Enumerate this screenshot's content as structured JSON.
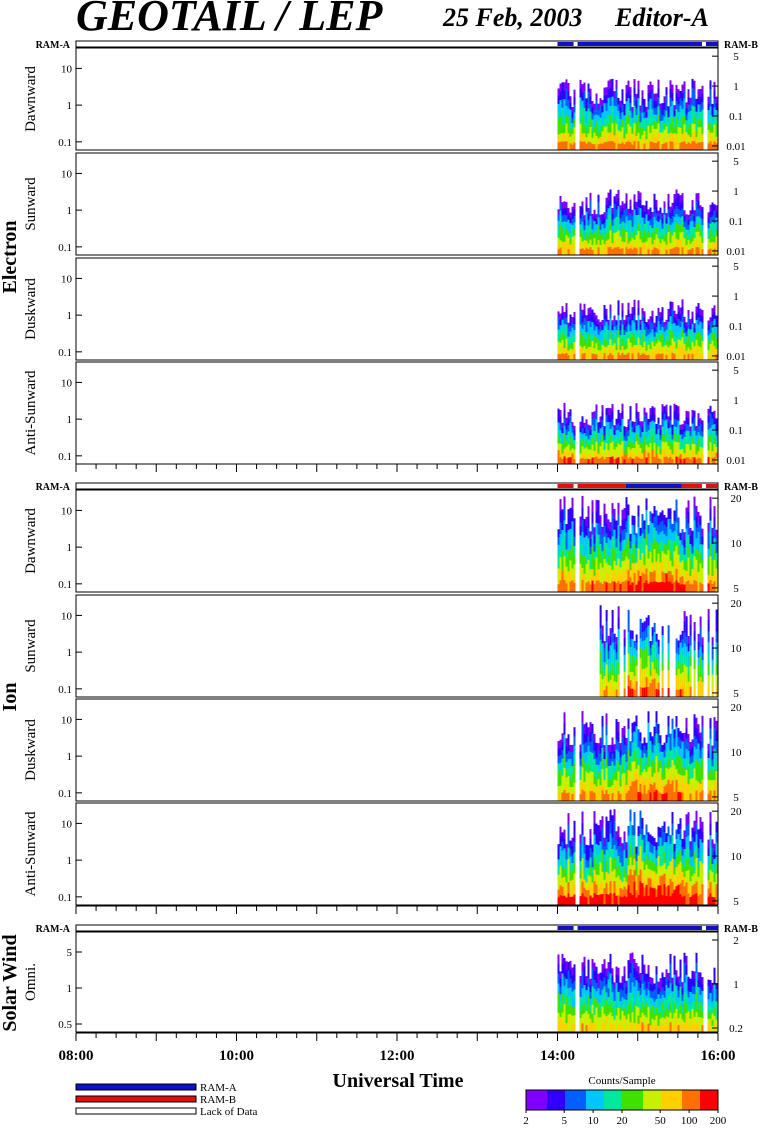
{
  "header": {
    "title": "GEOTAIL / LEP",
    "date": "25 Feb, 2003",
    "editor": "Editor-A"
  },
  "colors": {
    "ram_a": "#1010c8",
    "ram_b": "#e01010",
    "lack_of_data": "#ffffff",
    "colormap": [
      "#8000ff",
      "#3000ff",
      "#0060ff",
      "#00c8ff",
      "#00e8a0",
      "#40e000",
      "#c8f000",
      "#ffd000",
      "#ff7000",
      "#ff0000"
    ]
  },
  "chart_data": {
    "type": "heatmap",
    "description_axis": "Universal Time",
    "x_ticks": [
      "08:00",
      "10:00",
      "12:00",
      "14:00",
      "16:00"
    ],
    "x_range_hours": [
      8,
      16
    ],
    "ram_label_left": "RAM-A",
    "ram_label_right": "RAM-B",
    "groups": [
      {
        "species": "Electron",
        "mode_bar": [
          {
            "start": 14.0,
            "end": 14.2,
            "mode": "ram_a"
          },
          {
            "start": 14.2,
            "end": 14.25,
            "mode": "gap"
          },
          {
            "start": 14.25,
            "end": 15.8,
            "mode": "ram_a"
          },
          {
            "start": 15.8,
            "end": 15.85,
            "mode": "gap"
          },
          {
            "start": 15.85,
            "end": 16.0,
            "mode": "ram_a"
          }
        ],
        "panels": [
          {
            "label": "Dawnward",
            "left_ticks": [
              "10",
              "1",
              "0.1"
            ],
            "right_ticks": [
              "5",
              "1",
              "0.1",
              "0.01"
            ],
            "data_start": 14.0,
            "intensity": 0.55,
            "top_frac": 0.7
          },
          {
            "label": "Sunward",
            "left_ticks": [
              "10",
              "1",
              "0.1"
            ],
            "right_ticks": [
              "5",
              "1",
              "0.1",
              "0.01"
            ],
            "data_start": 14.0,
            "intensity": 0.5,
            "top_frac": 0.65
          },
          {
            "label": "Duskward",
            "left_ticks": [
              "10",
              "1",
              "0.1"
            ],
            "right_ticks": [
              "5",
              "1",
              "0.1",
              "0.01"
            ],
            "data_start": 14.0,
            "intensity": 0.5,
            "top_frac": 0.6
          },
          {
            "label": "Anti-Sunward",
            "left_ticks": [
              "10",
              "1",
              "0.1"
            ],
            "right_ticks": [
              "5",
              "1",
              "0.1",
              "0.01"
            ],
            "data_start": 14.0,
            "intensity": 0.6,
            "top_frac": 0.6
          }
        ]
      },
      {
        "species": "Ion",
        "mode_bar": [
          {
            "start": 14.0,
            "end": 14.2,
            "mode": "ram_b"
          },
          {
            "start": 14.2,
            "end": 14.25,
            "mode": "gap"
          },
          {
            "start": 14.25,
            "end": 14.85,
            "mode": "ram_b"
          },
          {
            "start": 14.85,
            "end": 15.55,
            "mode": "ram_a"
          },
          {
            "start": 15.55,
            "end": 15.8,
            "mode": "ram_b"
          },
          {
            "start": 15.8,
            "end": 15.85,
            "mode": "gap"
          },
          {
            "start": 15.85,
            "end": 16.0,
            "mode": "ram_b"
          }
        ],
        "panels": [
          {
            "label": "Dawnward",
            "left_ticks": [
              "10",
              "1",
              "0.1"
            ],
            "right_ticks": [
              "20",
              "10",
              "5"
            ],
            "data_start": 14.0,
            "intensity": 0.6,
            "top_frac": 0.95
          },
          {
            "label": "Sunward",
            "left_ticks": [
              "10",
              "1",
              "0.1"
            ],
            "right_ticks": [
              "20",
              "10",
              "5"
            ],
            "data_start": 14.5,
            "intensity": 0.45,
            "top_frac": 0.9
          },
          {
            "label": "Duskward",
            "left_ticks": [
              "10",
              "1",
              "0.1"
            ],
            "right_ticks": [
              "20",
              "10",
              "5"
            ],
            "data_start": 14.0,
            "intensity": 0.5,
            "top_frac": 0.9
          },
          {
            "label": "Anti-Sunward",
            "left_ticks": [
              "10",
              "1",
              "0.1"
            ],
            "right_ticks": [
              "20",
              "10",
              "5"
            ],
            "data_start": 14.0,
            "intensity": 0.8,
            "top_frac": 0.95
          }
        ]
      },
      {
        "species": "Solar Wind",
        "mode_bar": [
          {
            "start": 14.0,
            "end": 14.2,
            "mode": "ram_a"
          },
          {
            "start": 14.2,
            "end": 14.25,
            "mode": "gap"
          },
          {
            "start": 14.25,
            "end": 15.8,
            "mode": "ram_a"
          },
          {
            "start": 15.8,
            "end": 15.85,
            "mode": "gap"
          },
          {
            "start": 15.85,
            "end": 16.0,
            "mode": "ram_a"
          }
        ],
        "panels": [
          {
            "label": "Omni.",
            "left_ticks": [
              "5",
              "1",
              "0.5"
            ],
            "right_ticks": [
              "2",
              "1",
              "0.2"
            ],
            "data_start": 14.0,
            "intensity": 0.35,
            "top_frac": 0.8
          }
        ]
      }
    ],
    "colorbar": {
      "title": "Counts/Sample",
      "ticks": [
        "2",
        "5",
        "10",
        "20",
        "50",
        "100",
        "200"
      ]
    },
    "legend": [
      {
        "label": "RAM-A",
        "mode": "ram_a"
      },
      {
        "label": "RAM-B",
        "mode": "ram_b"
      },
      {
        "label": "Lack of Data",
        "mode": "gap"
      }
    ]
  }
}
